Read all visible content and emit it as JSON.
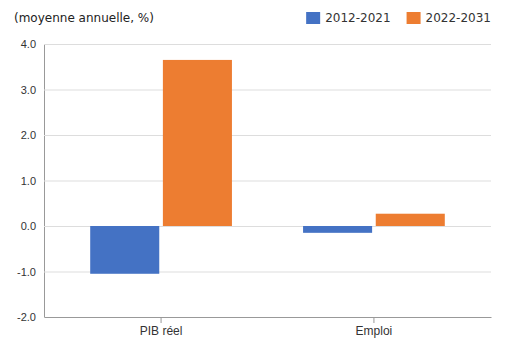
{
  "chart_data": {
    "type": "bar",
    "title": "(moyenne annuelle, %)",
    "categories": [
      "PIB réel",
      "Emploi"
    ],
    "series": [
      {
        "name": "2012-2021",
        "color": "#4472c4",
        "values": [
          -1.05,
          -0.15
        ]
      },
      {
        "name": "2022-2031",
        "color": "#ed7d31",
        "values": [
          3.65,
          0.27
        ]
      }
    ],
    "ylim": [
      -2.0,
      4.0
    ],
    "yticks": [
      {
        "value": -2.0,
        "label": "-2.0"
      },
      {
        "value": -1.0,
        "label": "-1.0"
      },
      {
        "value": 0.0,
        "label": "0.0"
      },
      {
        "value": 1.0,
        "label": "1.0"
      },
      {
        "value": 2.0,
        "label": "2.0"
      },
      {
        "value": 3.0,
        "label": "3.0"
      },
      {
        "value": 4.0,
        "label": "4.0"
      }
    ],
    "grid": true,
    "legend": "top"
  }
}
